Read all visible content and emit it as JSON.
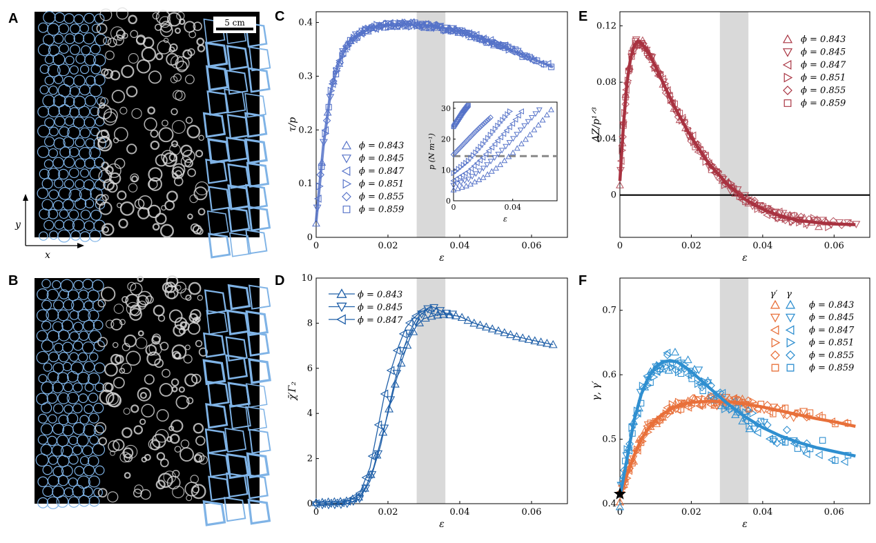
{
  "figure": {
    "panel_labels": [
      "A",
      "B",
      "C",
      "D",
      "E",
      "F"
    ],
    "scale_bar_label": "5 cm",
    "axis_arrow_labels": {
      "x": "x",
      "y": "y"
    },
    "colors": {
      "blue": "#5572c8",
      "darkblue": "#1f5fa8",
      "red": "#a83240",
      "orange": "#e8703a",
      "mid_blue": "#2f8fd0",
      "shade": "#d9d9d9",
      "image_bg": "#000000",
      "image_edge": "#7fb3e6"
    }
  },
  "chart_data": [
    {
      "id": "C",
      "type": "scatter",
      "xlabel": "ε",
      "ylabel": "τ/p",
      "xlim": [
        0,
        0.07
      ],
      "ylim": [
        0,
        0.42
      ],
      "xticks": [
        "0",
        "0.02",
        "0.04",
        "0.06"
      ],
      "xtick_values": [
        0,
        0.02,
        0.04,
        0.06
      ],
      "yticks": [
        "0",
        "0.1",
        "0.2",
        "0.3",
        "0.4"
      ],
      "ytick_values": [
        0,
        0.1,
        0.2,
        0.3,
        0.4
      ],
      "shaded_band": [
        0.028,
        0.036
      ],
      "legend": [
        "ϕ = 0.843",
        "ϕ = 0.845",
        "ϕ = 0.847",
        "ϕ = 0.851",
        "ϕ = 0.855",
        "ϕ = 0.859"
      ],
      "markers": [
        "tri-up",
        "tri-down",
        "tri-left",
        "tri-right",
        "diamond",
        "square"
      ],
      "curve": {
        "x": [
          0,
          0.002,
          0.004,
          0.006,
          0.008,
          0.01,
          0.015,
          0.02,
          0.025,
          0.03,
          0.035,
          0.04,
          0.045,
          0.05,
          0.055,
          0.06,
          0.066
        ],
        "y": [
          0.03,
          0.17,
          0.27,
          0.32,
          0.35,
          0.37,
          0.39,
          0.395,
          0.397,
          0.395,
          0.39,
          0.383,
          0.372,
          0.36,
          0.347,
          0.333,
          0.317
        ]
      },
      "inset": {
        "xlabel": "ε",
        "ylabel": "p (N m⁻¹)",
        "xlim": [
          0,
          0.07
        ],
        "ylim": [
          0,
          32
        ],
        "xticks": [
          "0",
          "0.04"
        ],
        "xtick_values": [
          0,
          0.04
        ],
        "yticks": [
          "0",
          "10",
          "20",
          "30"
        ],
        "ytick_values": [
          0,
          10,
          20,
          30
        ],
        "dashed_level": 14.5,
        "series": [
          {
            "x": [
              0,
              0.002,
              0.004,
              0.006,
              0.008,
              0.01
            ],
            "y": [
              24,
              25.5,
              27,
              28.5,
              29.8,
              31
            ]
          },
          {
            "x": [
              0,
              0.005,
              0.01,
              0.015,
              0.02,
              0.025
            ],
            "y": [
              15,
              17.5,
              20,
              22.5,
              24.8,
              27
            ]
          },
          {
            "x": [
              0,
              0.01,
              0.02,
              0.03,
              0.038
            ],
            "y": [
              9,
              13,
              18.5,
              24.5,
              29
            ]
          },
          {
            "x": [
              0,
              0.01,
              0.02,
              0.03,
              0.04,
              0.046
            ],
            "y": [
              6.5,
              9.5,
              14,
              19.5,
              25,
              29
            ]
          },
          {
            "x": [
              0,
              0.01,
              0.02,
              0.03,
              0.04,
              0.05,
              0.058
            ],
            "y": [
              5,
              7,
              10.5,
              15,
              20,
              25.5,
              29.5
            ]
          },
          {
            "x": [
              0,
              0.01,
              0.02,
              0.03,
              0.04,
              0.05,
              0.06,
              0.066
            ],
            "y": [
              3.5,
              5,
              7.5,
              11,
              15.5,
              20.5,
              26,
              29.5
            ]
          }
        ]
      }
    },
    {
      "id": "D",
      "type": "line",
      "xlabel": "ε",
      "ylabel": "χ̄′Γ₂",
      "xlim": [
        0,
        0.07
      ],
      "ylim": [
        0,
        10
      ],
      "xticks": [
        "0",
        "0.02",
        "0.04",
        "0.06"
      ],
      "xtick_values": [
        0,
        0.02,
        0.04,
        0.06
      ],
      "yticks": [
        "0",
        "2",
        "4",
        "6",
        "8",
        "10"
      ],
      "ytick_values": [
        0,
        2,
        4,
        6,
        8,
        10
      ],
      "shaded_band": [
        0.028,
        0.036
      ],
      "legend": [
        "ϕ = 0.843",
        "ϕ = 0.845",
        "ϕ = 0.847"
      ],
      "markers": [
        "tri-up",
        "tri-down",
        "tri-left"
      ],
      "series": [
        {
          "x": [
            0,
            0.004,
            0.008,
            0.012,
            0.014,
            0.016,
            0.018,
            0.02,
            0.022,
            0.024,
            0.026,
            0.028,
            0.03,
            0.033,
            0.036,
            0.04,
            0.044,
            0.048,
            0.052,
            0.056,
            0.06,
            0.063,
            0.066
          ],
          "y": [
            0.05,
            0.08,
            0.1,
            0.3,
            0.8,
            1.6,
            2.8,
            4.0,
            5.3,
            6.4,
            7.3,
            7.9,
            8.2,
            8.35,
            8.4,
            8.3,
            8.0,
            7.8,
            7.6,
            7.4,
            7.25,
            7.15,
            7.05
          ]
        },
        {
          "x": [
            0,
            0.004,
            0.008,
            0.012,
            0.015,
            0.018,
            0.02,
            0.022,
            0.024,
            0.026,
            0.028,
            0.03,
            0.032,
            0.034,
            0.036,
            0.038
          ],
          "y": [
            -0.05,
            -0.05,
            -0.03,
            0.2,
            1.0,
            2.6,
            4.1,
            5.5,
            6.7,
            7.6,
            8.2,
            8.5,
            8.75,
            8.6,
            8.45,
            8.4
          ]
        },
        {
          "x": [
            0,
            0.004,
            0.008,
            0.012,
            0.015,
            0.017,
            0.019,
            0.021,
            0.023,
            0.025,
            0.027,
            0.029,
            0.031,
            0.033
          ],
          "y": [
            0.0,
            0.02,
            0.05,
            0.4,
            1.6,
            3.2,
            4.8,
            6.0,
            7.0,
            7.8,
            8.2,
            8.5,
            8.6,
            8.5
          ]
        }
      ]
    },
    {
      "id": "E",
      "type": "scatter",
      "xlabel": "ε",
      "ylabel": "ΔZ/p¹ᐟ³",
      "xlim": [
        0,
        0.07
      ],
      "ylim": [
        -0.03,
        0.13
      ],
      "xticks": [
        "0",
        "0.02",
        "0.04",
        "0.06"
      ],
      "xtick_values": [
        0,
        0.02,
        0.04,
        0.06
      ],
      "yticks": [
        "0",
        "0.04",
        "0.08",
        "0.12"
      ],
      "ytick_values": [
        0,
        0.04,
        0.08,
        0.12
      ],
      "shaded_band": [
        0.028,
        0.036
      ],
      "zero_line": 0,
      "legend": [
        "ϕ = 0.843",
        "ϕ = 0.845",
        "ϕ = 0.847",
        "ϕ = 0.851",
        "ϕ = 0.855",
        "ϕ = 0.859"
      ],
      "markers": [
        "tri-up",
        "tri-down",
        "tri-left",
        "tri-right",
        "diamond",
        "square"
      ],
      "curve": {
        "x": [
          0,
          0.001,
          0.002,
          0.003,
          0.004,
          0.005,
          0.006,
          0.008,
          0.01,
          0.012,
          0.015,
          0.018,
          0.02,
          0.025,
          0.03,
          0.035,
          0.04,
          0.045,
          0.05,
          0.055,
          0.06,
          0.066
        ],
        "y": [
          0.01,
          0.05,
          0.08,
          0.097,
          0.106,
          0.109,
          0.108,
          0.101,
          0.091,
          0.08,
          0.064,
          0.05,
          0.041,
          0.022,
          0.008,
          -0.003,
          -0.01,
          -0.015,
          -0.018,
          -0.0195,
          -0.0205,
          -0.021
        ]
      }
    },
    {
      "id": "F",
      "type": "scatter",
      "xlabel": "ε",
      "ylabel": "γ, γ′",
      "xlim": [
        0,
        0.07
      ],
      "ylim": [
        0.4,
        0.75
      ],
      "xticks": [
        "0",
        "0.02",
        "0.04",
        "0.06"
      ],
      "xtick_values": [
        0,
        0.02,
        0.04,
        0.06
      ],
      "yticks": [
        "0.4",
        "0.5",
        "0.6",
        "0.7"
      ],
      "ytick_values": [
        0.4,
        0.5,
        0.6,
        0.7
      ],
      "shaded_band": [
        0.028,
        0.036
      ],
      "legend_header": [
        "γ′",
        "γ"
      ],
      "legend": [
        "ϕ = 0.843",
        "ϕ = 0.845",
        "ϕ = 0.847",
        "ϕ = 0.851",
        "ϕ = 0.855",
        "ϕ = 0.859"
      ],
      "markers": [
        "tri-up",
        "tri-down",
        "tri-left",
        "tri-right",
        "diamond",
        "square"
      ],
      "star_point": {
        "x": 0,
        "y": 0.415
      },
      "series": [
        {
          "name": "γ",
          "x": [
            0,
            0.002,
            0.004,
            0.006,
            0.008,
            0.01,
            0.012,
            0.014,
            0.016,
            0.018,
            0.02,
            0.025,
            0.03,
            0.035,
            0.04,
            0.045,
            0.05,
            0.055,
            0.06,
            0.066
          ],
          "y": [
            0.41,
            0.47,
            0.53,
            0.57,
            0.596,
            0.612,
            0.62,
            0.622,
            0.62,
            0.613,
            0.605,
            0.58,
            0.556,
            0.535,
            0.518,
            0.505,
            0.495,
            0.487,
            0.481,
            0.474
          ]
        },
        {
          "name": "γ′",
          "x": [
            0,
            0.002,
            0.004,
            0.006,
            0.008,
            0.01,
            0.012,
            0.015,
            0.018,
            0.02,
            0.025,
            0.03,
            0.035,
            0.04,
            0.045,
            0.05,
            0.055,
            0.06,
            0.066
          ],
          "y": [
            0.41,
            0.445,
            0.475,
            0.5,
            0.517,
            0.53,
            0.539,
            0.549,
            0.555,
            0.557,
            0.559,
            0.558,
            0.555,
            0.55,
            0.544,
            0.538,
            0.532,
            0.527,
            0.52
          ]
        }
      ]
    }
  ]
}
